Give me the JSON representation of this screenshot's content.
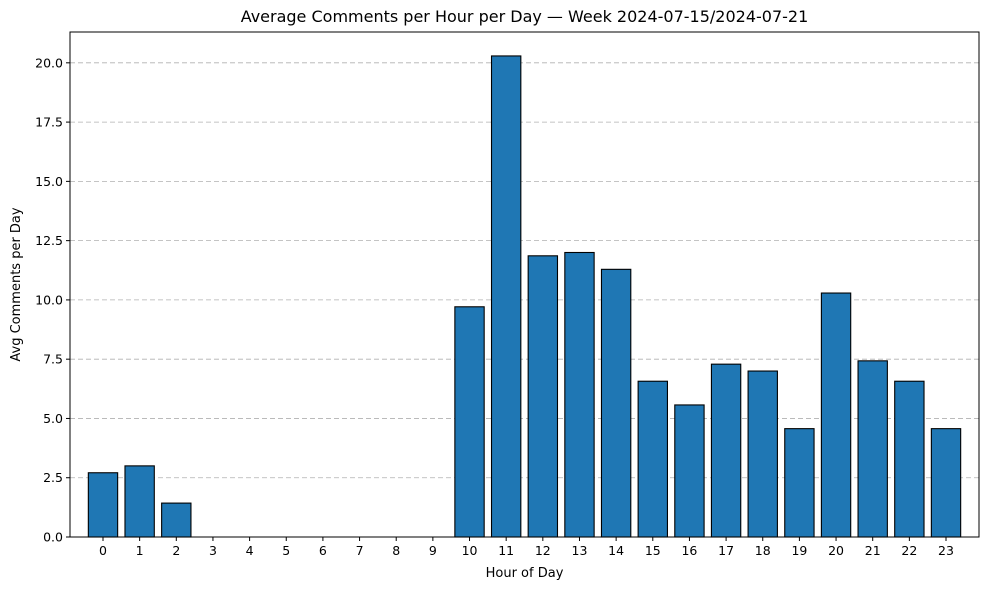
{
  "chart_data": {
    "type": "bar",
    "title": "Average Comments per Hour per Day — Week 2024-07-15/2024-07-21",
    "xlabel": "Hour of Day",
    "ylabel": "Avg Comments per Day",
    "categories": [
      "0",
      "1",
      "2",
      "3",
      "4",
      "5",
      "6",
      "7",
      "8",
      "9",
      "10",
      "11",
      "12",
      "13",
      "14",
      "15",
      "16",
      "17",
      "18",
      "19",
      "20",
      "21",
      "22",
      "23"
    ],
    "values": [
      2.71,
      3.0,
      1.43,
      0,
      0,
      0,
      0,
      0,
      0,
      0,
      9.71,
      20.29,
      11.86,
      12.0,
      11.29,
      6.57,
      5.57,
      7.29,
      7.0,
      4.57,
      10.29,
      7.43,
      6.57,
      4.57
    ],
    "ylim": [
      0,
      21.3
    ],
    "yticks": [
      0.0,
      2.5,
      5.0,
      7.5,
      10.0,
      12.5,
      15.0,
      17.5,
      20.0
    ],
    "ytick_labels": [
      "0.0",
      "2.5",
      "5.0",
      "7.5",
      "10.0",
      "12.5",
      "15.0",
      "17.5",
      "20.0"
    ],
    "grid": "y-dashed",
    "bar_color": "#1f77b4",
    "edge_color": "#000000"
  }
}
